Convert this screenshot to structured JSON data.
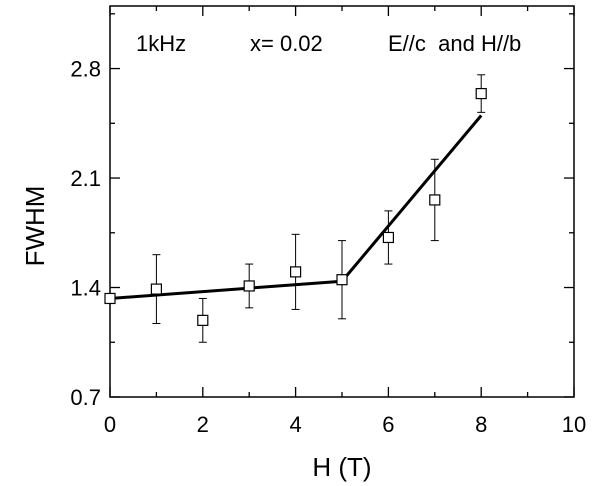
{
  "chart_data": {
    "type": "scatter",
    "title": "",
    "xlabel": "H (T)",
    "ylabel": "FWHM",
    "xlim": [
      0,
      10
    ],
    "ylim": [
      0.7,
      3.2
    ],
    "x_ticks": [
      0,
      2,
      4,
      6,
      8,
      10
    ],
    "y_ticks": [
      0.7,
      1.4,
      2.1,
      2.8
    ],
    "x_tick_labels": [
      "0",
      "2",
      "4",
      "6",
      "8",
      "10"
    ],
    "y_tick_labels": [
      "0.7",
      "1.4",
      "2.1",
      "2.8"
    ],
    "grid": false,
    "annotations": [
      "1kHz",
      "x= 0.02",
      "E//c  and H//b"
    ],
    "series": [
      {
        "marker": "open-square",
        "x": [
          0,
          1,
          2,
          3,
          4,
          5,
          6,
          7,
          8
        ],
        "y": [
          1.33,
          1.39,
          1.19,
          1.41,
          1.5,
          1.45,
          1.72,
          1.96,
          2.64
        ],
        "y_err": [
          0.02,
          0.22,
          0.14,
          0.14,
          0.24,
          0.25,
          0.17,
          0.26,
          0.12
        ]
      }
    ],
    "fit_lines": [
      {
        "x": [
          0,
          5
        ],
        "y": [
          1.33,
          1.44
        ]
      },
      {
        "x": [
          5,
          8
        ],
        "y": [
          1.44,
          2.5
        ]
      }
    ]
  }
}
